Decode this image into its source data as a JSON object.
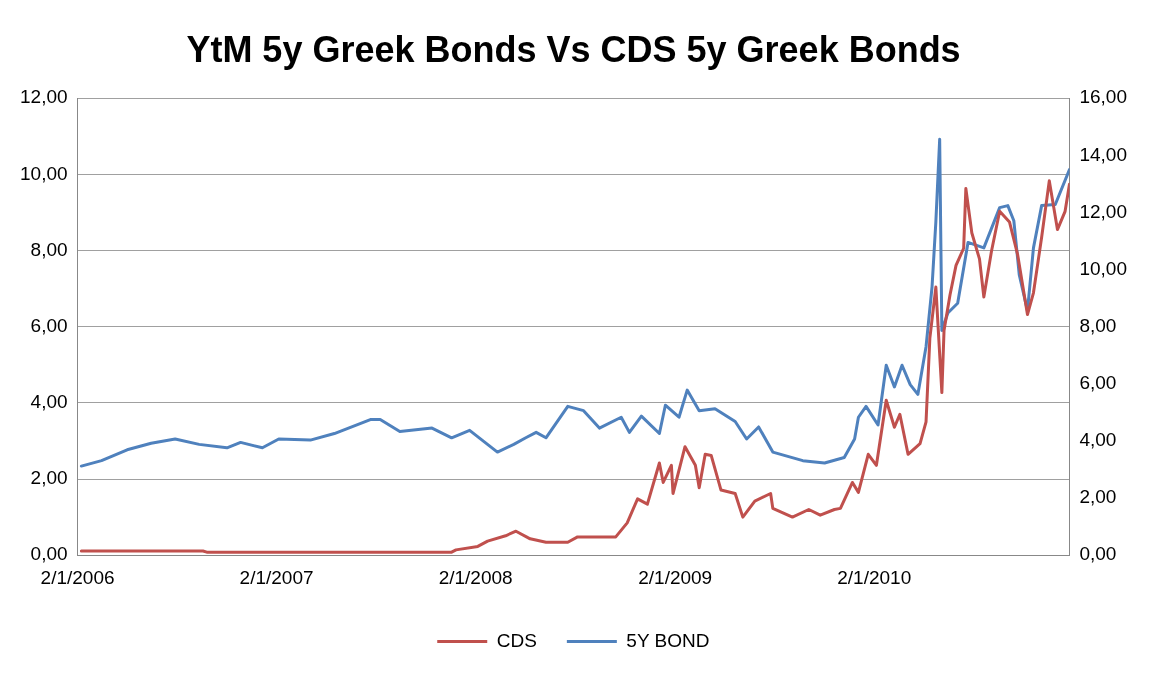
{
  "chart_data": {
    "type": "line",
    "title": "YtM 5y Greek Bonds Vs CDS 5y Greek Bonds",
    "xlim": [
      "2006-01-02",
      "2010-12-26"
    ],
    "xticks": [
      {
        "value": "2006-01-02",
        "label": "2/1/2006"
      },
      {
        "value": "2007-01-02",
        "label": "2/1/2007"
      },
      {
        "value": "2008-01-02",
        "label": "2/1/2008"
      },
      {
        "value": "2009-01-02",
        "label": "2/1/2009"
      },
      {
        "value": "2010-01-02",
        "label": "2/1/2010"
      }
    ],
    "ylim": [
      0,
      12
    ],
    "yticks": [
      {
        "value": 0,
        "label": "0,00"
      },
      {
        "value": 2,
        "label": "2,00"
      },
      {
        "value": 4,
        "label": "4,00"
      },
      {
        "value": 6,
        "label": "6,00"
      },
      {
        "value": 8,
        "label": "8,00"
      },
      {
        "value": 10,
        "label": "10,00"
      },
      {
        "value": 12,
        "label": "12,00"
      }
    ],
    "y2lim": [
      0,
      16
    ],
    "y2ticks": [
      {
        "value": 0,
        "label": "0,00"
      },
      {
        "value": 2,
        "label": "2,00"
      },
      {
        "value": 4,
        "label": "4,00"
      },
      {
        "value": 6,
        "label": "6,00"
      },
      {
        "value": 8,
        "label": "8,00"
      },
      {
        "value": 10,
        "label": "10,00"
      },
      {
        "value": 12,
        "label": "12,00"
      },
      {
        "value": 14,
        "label": "14,00"
      },
      {
        "value": 16,
        "label": "16,00"
      }
    ],
    "grid": "y",
    "legend": "bottom",
    "marker": "none",
    "line_style": "solid",
    "series": [
      {
        "name": "CDS",
        "color": "#c0504d",
        "x": [
          "2006-01-09",
          "2006-08-20",
          "2006-08-27",
          "2007-11-19",
          "2007-11-27",
          "2008-01-06",
          "2008-01-24",
          "2008-02-26",
          "2008-03-16",
          "2008-04-11",
          "2008-05-10",
          "2008-06-19",
          "2008-07-07",
          "2008-09-15",
          "2008-10-06",
          "2008-10-25",
          "2008-11-12",
          "2008-12-04",
          "2008-12-11",
          "2008-12-26",
          "2008-12-29",
          "2009-01-20",
          "2009-02-08",
          "2009-02-15",
          "2009-02-26",
          "2009-03-09",
          "2009-03-27",
          "2009-04-22",
          "2009-05-06",
          "2009-05-28",
          "2009-06-26",
          "2009-06-30",
          "2009-08-05",
          "2009-09-04",
          "2009-09-25",
          "2009-10-21",
          "2009-11-01",
          "2009-11-23",
          "2009-12-04",
          "2009-12-22",
          "2010-01-06",
          "2010-01-24",
          "2010-02-08",
          "2010-02-18",
          "2010-03-05",
          "2010-03-27",
          "2010-04-07",
          "2010-04-14",
          "2010-04-25",
          "2010-05-06",
          "2010-05-10",
          "2010-05-21",
          "2010-06-01",
          "2010-06-15",
          "2010-06-19",
          "2010-06-30",
          "2010-07-14",
          "2010-07-22",
          "2010-08-05",
          "2010-08-20",
          "2010-09-07",
          "2010-09-22",
          "2010-10-10",
          "2010-10-21",
          "2010-11-05",
          "2010-11-19",
          "2010-12-04",
          "2010-12-18",
          "2010-12-26"
        ],
        "values": [
          0.11,
          0.11,
          0.08,
          0.08,
          0.14,
          0.23,
          0.37,
          0.51,
          0.63,
          0.43,
          0.34,
          0.34,
          0.48,
          0.48,
          0.85,
          1.48,
          1.34,
          2.42,
          1.91,
          2.36,
          1.62,
          2.85,
          2.36,
          1.77,
          2.65,
          2.62,
          1.71,
          1.62,
          1.0,
          1.42,
          1.62,
          1.23,
          1.0,
          1.2,
          1.05,
          1.2,
          1.23,
          1.91,
          1.65,
          2.65,
          2.36,
          4.07,
          3.36,
          3.7,
          2.65,
          2.93,
          3.5,
          5.7,
          7.04,
          4.27,
          5.9,
          6.84,
          7.61,
          8.06,
          9.63,
          8.46,
          7.78,
          6.78,
          7.98,
          9.03,
          8.75,
          7.89,
          6.32,
          6.89,
          8.35,
          9.83,
          8.55,
          9.03,
          9.74
        ]
      },
      {
        "name": "5Y BOND",
        "color": "#4f81bd",
        "axis": "y2",
        "x": [
          "2006-01-09",
          "2006-02-15",
          "2006-04-03",
          "2006-05-17",
          "2006-06-30",
          "2006-08-13",
          "2006-10-03",
          "2006-10-28",
          "2006-12-07",
          "2007-01-06",
          "2007-03-05",
          "2007-04-18",
          "2007-06-23",
          "2007-07-11",
          "2007-08-16",
          "2007-10-14",
          "2007-11-19",
          "2007-12-22",
          "2008-02-11",
          "2008-03-12",
          "2008-04-03",
          "2008-04-22",
          "2008-05-10",
          "2008-06-19",
          "2008-07-18",
          "2008-08-16",
          "2008-09-25",
          "2008-10-10",
          "2008-11-01",
          "2008-12-04",
          "2008-12-15",
          "2009-01-09",
          "2009-01-24",
          "2009-02-15",
          "2009-03-16",
          "2009-04-22",
          "2009-05-13",
          "2009-06-04",
          "2009-06-30",
          "2009-08-24",
          "2009-10-03",
          "2009-11-08",
          "2009-11-27",
          "2009-12-04",
          "2009-12-18",
          "2010-01-09",
          "2010-01-24",
          "2010-02-08",
          "2010-02-22",
          "2010-03-09",
          "2010-03-23",
          "2010-04-07",
          "2010-04-18",
          "2010-04-25",
          "2010-05-02",
          "2010-05-06",
          "2010-05-17",
          "2010-06-04",
          "2010-06-23",
          "2010-07-22",
          "2010-08-20",
          "2010-09-04",
          "2010-09-15",
          "2010-09-25",
          "2010-10-10",
          "2010-10-21",
          "2010-11-05",
          "2010-11-30",
          "2010-12-26"
        ],
        "values": [
          3.12,
          3.31,
          3.69,
          3.92,
          4.07,
          3.88,
          3.76,
          3.95,
          3.76,
          4.07,
          4.03,
          4.26,
          4.75,
          4.75,
          4.33,
          4.45,
          4.11,
          4.37,
          3.61,
          3.88,
          4.11,
          4.3,
          4.11,
          5.21,
          5.06,
          4.45,
          4.83,
          4.3,
          4.87,
          4.26,
          5.25,
          4.83,
          5.78,
          5.06,
          5.13,
          4.68,
          4.07,
          4.49,
          3.61,
          3.31,
          3.23,
          3.42,
          4.07,
          4.83,
          5.21,
          4.56,
          6.65,
          5.89,
          6.65,
          5.97,
          5.63,
          7.3,
          9.39,
          11.67,
          14.56,
          7.87,
          8.48,
          8.82,
          10.95,
          10.76,
          12.17,
          12.24,
          11.71,
          9.81,
          8.56,
          10.76,
          12.24,
          12.28,
          13.5
        ]
      }
    ]
  }
}
